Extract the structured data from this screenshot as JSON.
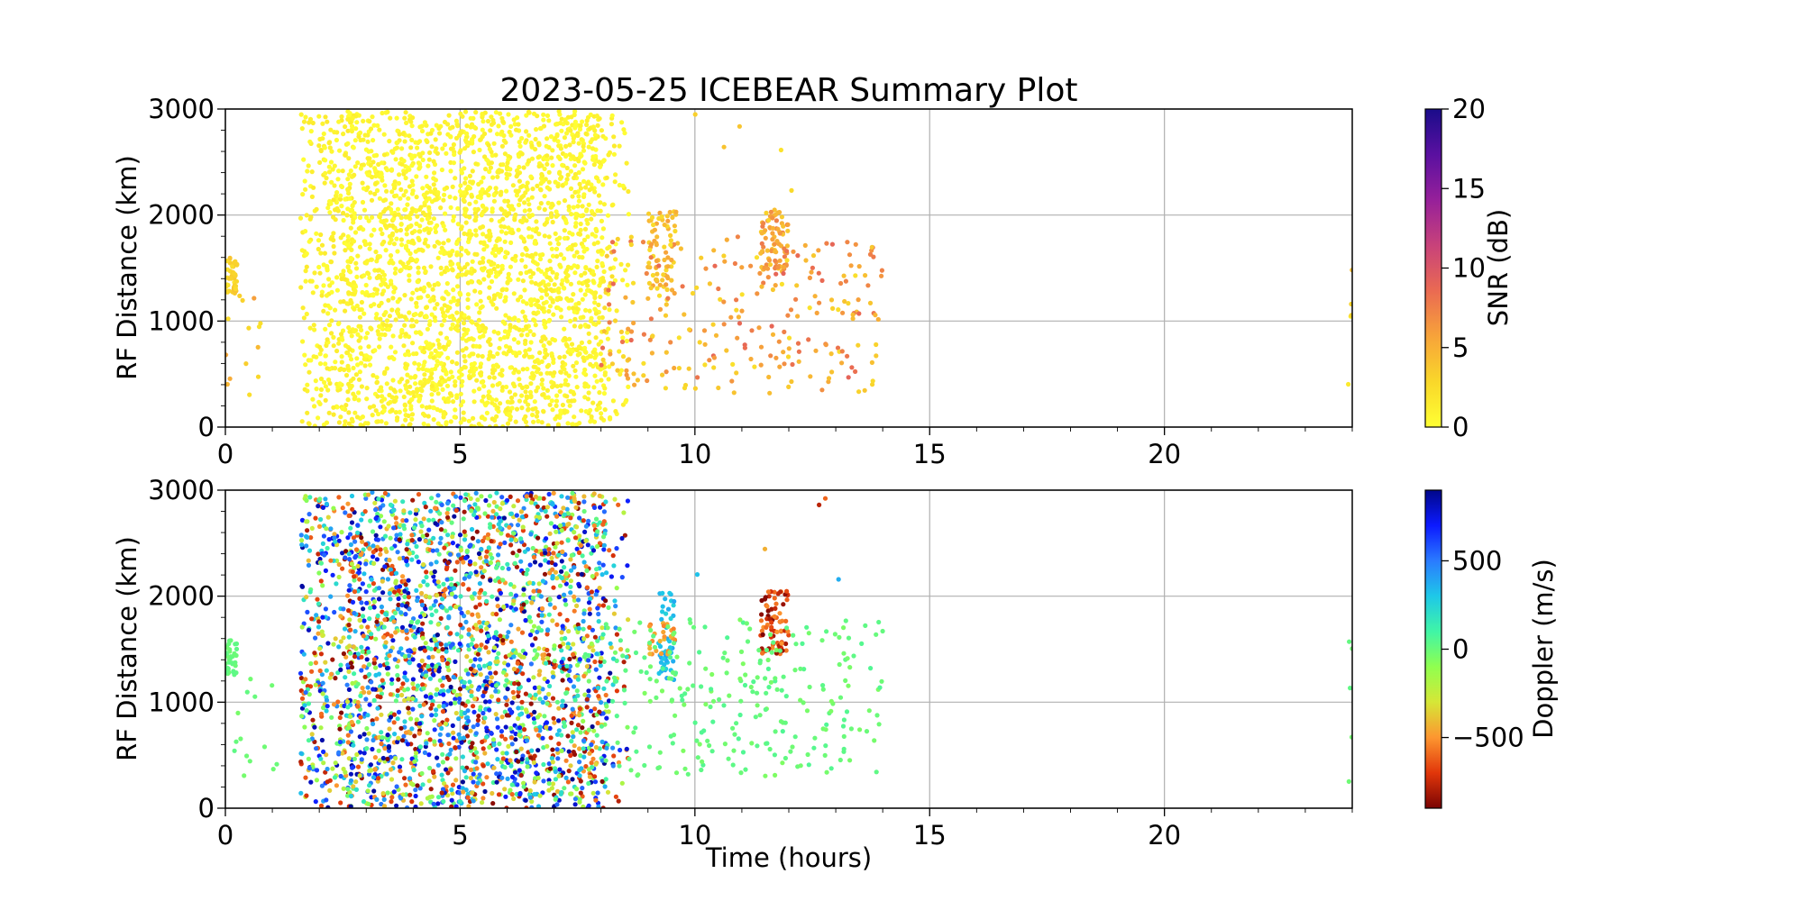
{
  "chart_data": [
    {
      "type": "scatter",
      "title": "2023-05-25 ICEBEAR Summary Plot",
      "xlabel": "",
      "ylabel": "RF Distance (km)",
      "xlim": [
        0,
        24
      ],
      "ylim": [
        0,
        3000
      ],
      "xticks": [
        "0",
        "5",
        "10",
        "15",
        "20"
      ],
      "yticks": [
        "0",
        "1000",
        "2000",
        "3000"
      ],
      "grid": true,
      "color_variable": "SNR",
      "colorbar": {
        "label": "SNR (dB)",
        "range": [
          0,
          20
        ],
        "ticks": [
          "0",
          "5",
          "10",
          "15",
          "20"
        ],
        "colors": [
          "#ffff33",
          "#f9d72a",
          "#f7a33a",
          "#ea6a52",
          "#c8427a",
          "#96209a",
          "#5a10a0",
          "#1a0c8a"
        ]
      },
      "series": [
        {
          "clusters": [
            {
              "x": [
                0.0,
                0.25
              ],
              "y": [
                1250,
                1600
              ],
              "n": 40,
              "c": [
                2,
                4
              ]
            },
            {
              "x": [
                0.0,
                1.1
              ],
              "y": [
                250,
                1250
              ],
              "n": 14,
              "c": [
                2,
                6
              ]
            },
            {
              "x": [
                1.6,
                2.7
              ],
              "y": [
                0,
                2950
              ],
              "n": 300,
              "c": [
                0,
                1.5
              ]
            },
            {
              "x": [
                2.6,
                8.1
              ],
              "y": [
                0,
                2980
              ],
              "n": 2400,
              "c": [
                0,
                1.2
              ]
            },
            {
              "x": [
                8.1,
                8.6
              ],
              "y": [
                0,
                2950
              ],
              "n": 60,
              "c": [
                0,
                1.5
              ]
            },
            {
              "x": [
                9.0,
                9.6
              ],
              "y": [
                1200,
                2050
              ],
              "n": 70,
              "c": [
                2,
                6
              ]
            },
            {
              "x": [
                11.4,
                12.0
              ],
              "y": [
                1450,
                2050
              ],
              "n": 80,
              "c": [
                3,
                8
              ]
            },
            {
              "x": [
                8.0,
                14.0
              ],
              "y": [
                300,
                1800
              ],
              "n": 260,
              "c": [
                2,
                9
              ]
            },
            {
              "x": [
                10.0,
                13.2
              ],
              "y": [
                1900,
                2950
              ],
              "n": 5,
              "c": [
                1,
                4
              ]
            },
            {
              "x": [
                23.9,
                24.0
              ],
              "y": [
                250,
                1650
              ],
              "n": 5,
              "c": [
                1,
                5
              ]
            }
          ]
        }
      ]
    },
    {
      "type": "scatter",
      "title": "",
      "xlabel": "Time (hours)",
      "ylabel": "RF Distance (km)",
      "xlim": [
        0,
        24
      ],
      "ylim": [
        0,
        3000
      ],
      "xticks": [
        "0",
        "5",
        "10",
        "15",
        "20"
      ],
      "yticks": [
        "0",
        "1000",
        "2000",
        "3000"
      ],
      "grid": true,
      "color_variable": "Doppler",
      "colorbar": {
        "label": "Doppler (m/s)",
        "range": [
          -900,
          900
        ],
        "ticks": [
          "−500",
          "0",
          "500"
        ],
        "tick_values": [
          -500,
          0,
          500
        ],
        "colors": [
          "#7a0403",
          "#e1360a",
          "#fd9630",
          "#d6e737",
          "#90ff4f",
          "#40f5a6",
          "#1ec8e8",
          "#2a7bff",
          "#0c1aff",
          "#00078a"
        ]
      },
      "series": [
        {
          "clusters": [
            {
              "x": [
                0.0,
                0.25
              ],
              "y": [
                1250,
                1600
              ],
              "n": 40,
              "c": [
                -30,
                30
              ]
            },
            {
              "x": [
                0.0,
                1.1
              ],
              "y": [
                250,
                1250
              ],
              "n": 14,
              "c": [
                -40,
                40
              ]
            },
            {
              "x": [
                1.6,
                2.7
              ],
              "y": [
                0,
                2950
              ],
              "n": 300,
              "c": [
                -900,
                900
              ]
            },
            {
              "x": [
                2.6,
                8.1
              ],
              "y": [
                0,
                2980
              ],
              "n": 2400,
              "c": [
                -900,
                900
              ]
            },
            {
              "x": [
                8.1,
                8.6
              ],
              "y": [
                0,
                2950
              ],
              "n": 60,
              "c": [
                -900,
                900
              ]
            },
            {
              "x": [
                9.2,
                9.6
              ],
              "y": [
                1200,
                2050
              ],
              "n": 45,
              "c": [
                250,
                400
              ]
            },
            {
              "x": [
                9.0,
                9.6
              ],
              "y": [
                1450,
                1750
              ],
              "n": 25,
              "c": [
                -550,
                -400
              ]
            },
            {
              "x": [
                11.4,
                12.0
              ],
              "y": [
                1450,
                2050
              ],
              "n": 80,
              "c": [
                -900,
                -500
              ]
            },
            {
              "x": [
                8.0,
                14.0
              ],
              "y": [
                300,
                1800
              ],
              "n": 260,
              "c": [
                -60,
                60
              ]
            },
            {
              "x": [
                10.0,
                13.2
              ],
              "y": [
                1900,
                2950
              ],
              "n": 5,
              "c": [
                -900,
                900
              ]
            },
            {
              "x": [
                23.9,
                24.0
              ],
              "y": [
                250,
                1650
              ],
              "n": 5,
              "c": [
                -30,
                30
              ]
            }
          ]
        }
      ]
    }
  ]
}
